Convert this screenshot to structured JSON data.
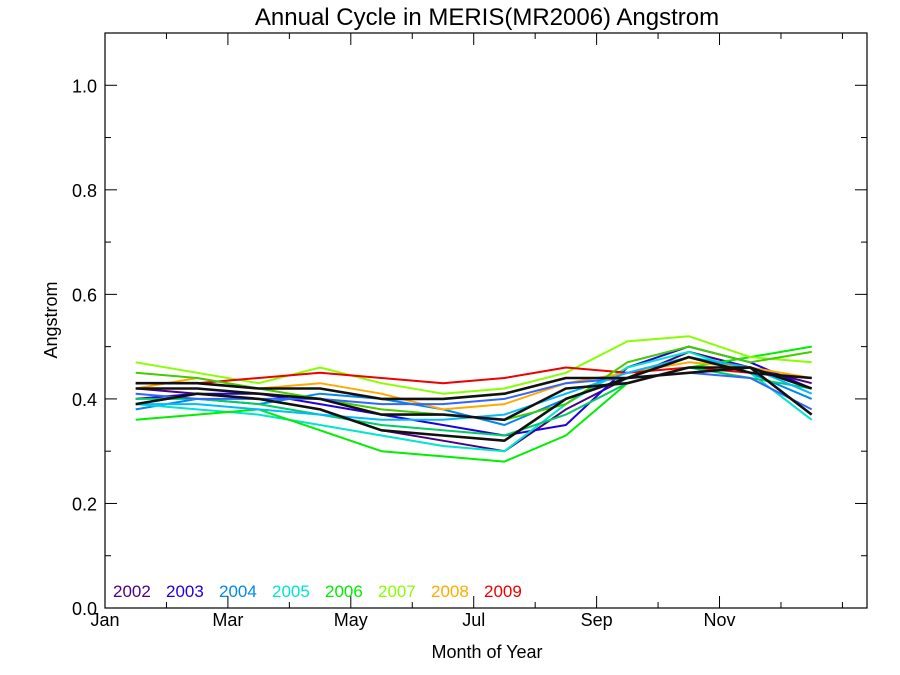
{
  "chart_data": {
    "type": "line",
    "title": "Annual Cycle in MERIS(MR2006) Angstrom",
    "xlabel": "Month of Year",
    "ylabel": "Angstrom",
    "xlim": [
      1,
      13.4
    ],
    "ylim": [
      0.0,
      1.1
    ],
    "x_ticks": [
      {
        "value": 1,
        "label": "Jan"
      },
      {
        "value": 3,
        "label": "Mar"
      },
      {
        "value": 5,
        "label": "May"
      },
      {
        "value": 7,
        "label": "Jul"
      },
      {
        "value": 9,
        "label": "Sep"
      },
      {
        "value": 11,
        "label": "Nov"
      }
    ],
    "y_ticks": [
      {
        "value": 0.0,
        "label": "0.0"
      },
      {
        "value": 0.2,
        "label": "0.2"
      },
      {
        "value": 0.4,
        "label": "0.4"
      },
      {
        "value": 0.6,
        "label": "0.6"
      },
      {
        "value": 0.8,
        "label": "0.8"
      },
      {
        "value": 1.0,
        "label": "1.0"
      }
    ],
    "x": [
      1.5,
      2.5,
      3.5,
      4.5,
      5.5,
      6.5,
      7.5,
      8.5,
      9.5,
      10.5,
      11.5,
      12.5
    ],
    "grid": false,
    "legend": "bottom-left",
    "series": [
      {
        "name": "2002",
        "color": "#4b0082",
        "values": [
          0.42,
          0.41,
          0.4,
          0.38,
          0.34,
          0.32,
          0.3,
          0.38,
          0.44,
          0.49,
          0.46,
          0.43
        ]
      },
      {
        "name": "2003",
        "color": "#2200dd",
        "values": [
          0.4,
          0.41,
          0.41,
          0.39,
          0.37,
          0.35,
          0.33,
          0.35,
          0.46,
          0.5,
          0.47,
          0.42
        ]
      },
      {
        "name": "2004",
        "color": "#0088ee",
        "values": [
          0.38,
          0.4,
          0.39,
          0.41,
          0.4,
          0.38,
          0.35,
          0.4,
          0.44,
          0.48,
          0.45,
          0.4
        ]
      },
      {
        "name": "2005",
        "color": "#00e5cc",
        "values": [
          0.39,
          0.38,
          0.37,
          0.35,
          0.33,
          0.31,
          0.3,
          0.39,
          0.46,
          0.49,
          0.45,
          0.36
        ]
      },
      {
        "name": "2006",
        "color": "#00ee00",
        "values": [
          0.36,
          0.37,
          0.38,
          0.34,
          0.3,
          0.29,
          0.28,
          0.33,
          0.43,
          0.46,
          0.48,
          0.5
        ]
      },
      {
        "name": "2007",
        "color": "#88ff00",
        "values": [
          0.47,
          0.45,
          0.43,
          0.46,
          0.43,
          0.41,
          0.42,
          0.45,
          0.51,
          0.52,
          0.48,
          0.47
        ]
      },
      {
        "name": "2008",
        "color": "#ffaa00",
        "values": [
          0.42,
          0.44,
          0.42,
          0.43,
          0.41,
          0.38,
          0.39,
          0.43,
          0.45,
          0.47,
          0.46,
          0.44
        ]
      },
      {
        "name": "2009",
        "color": "#ee0000",
        "values": [
          0.43,
          0.43,
          0.44,
          0.45,
          0.44,
          0.43,
          0.44,
          0.46,
          0.45,
          0.46,
          0.45,
          0.44
        ]
      },
      {
        "color": "#00cc66",
        "values": [
          0.4,
          0.4,
          0.39,
          0.37,
          0.35,
          0.34,
          0.33,
          0.37,
          0.43,
          0.46,
          0.44,
          0.42
        ]
      },
      {
        "color": "#44cc00",
        "values": [
          0.45,
          0.44,
          0.42,
          0.4,
          0.38,
          0.37,
          0.36,
          0.39,
          0.47,
          0.5,
          0.47,
          0.49
        ]
      },
      {
        "color": "#3366ff",
        "values": [
          0.41,
          0.4,
          0.4,
          0.4,
          0.39,
          0.39,
          0.4,
          0.43,
          0.44,
          0.45,
          0.44,
          0.38
        ]
      },
      {
        "color": "#00bbff",
        "values": [
          0.39,
          0.39,
          0.38,
          0.37,
          0.36,
          0.36,
          0.37,
          0.41,
          0.45,
          0.48,
          0.46,
          0.41
        ]
      },
      {
        "color": "#111111",
        "values": [
          0.39,
          0.41,
          0.4,
          0.38,
          0.34,
          0.33,
          0.32,
          0.4,
          0.44,
          0.48,
          0.45,
          0.44
        ]
      },
      {
        "color": "#111111",
        "values": [
          0.42,
          0.42,
          0.41,
          0.4,
          0.37,
          0.37,
          0.36,
          0.42,
          0.43,
          0.46,
          0.46,
          0.42
        ]
      },
      {
        "color": "#111111",
        "values": [
          0.43,
          0.43,
          0.42,
          0.42,
          0.4,
          0.4,
          0.41,
          0.44,
          0.44,
          0.45,
          0.46,
          0.37
        ]
      }
    ]
  }
}
